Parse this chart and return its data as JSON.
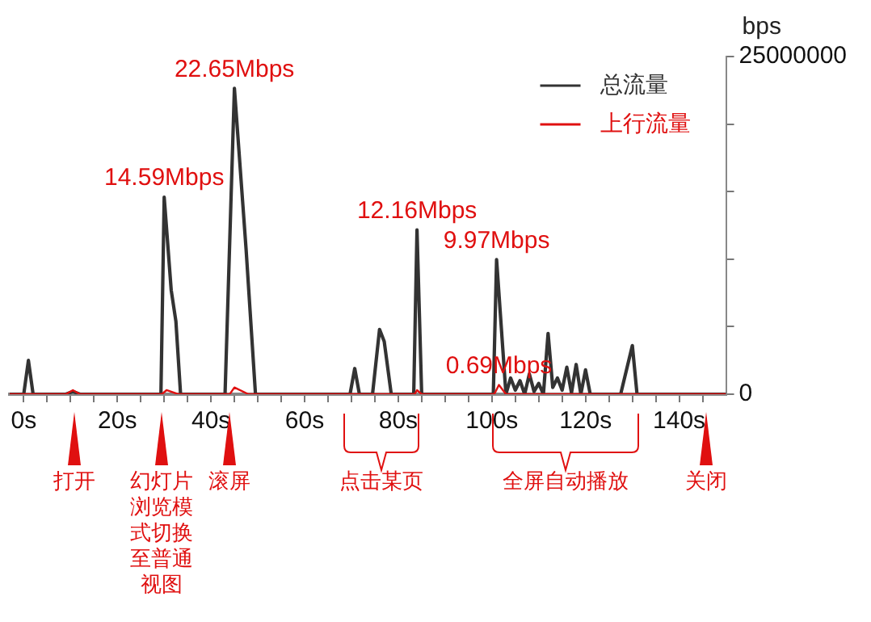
{
  "chart_data": {
    "type": "line",
    "ylabel": "bps",
    "xlim": [
      -3,
      150
    ],
    "xticks": [
      {
        "value": 0,
        "label": "0s"
      },
      {
        "value": 5,
        "label": null
      },
      {
        "value": 10,
        "label": null
      },
      {
        "value": 15,
        "label": null
      },
      {
        "value": 20,
        "label": "20s"
      },
      {
        "value": 25,
        "label": null
      },
      {
        "value": 30,
        "label": null
      },
      {
        "value": 35,
        "label": null
      },
      {
        "value": 40,
        "label": "40s"
      },
      {
        "value": 45,
        "label": null
      },
      {
        "value": 50,
        "label": null
      },
      {
        "value": 55,
        "label": null
      },
      {
        "value": 60,
        "label": "60s"
      },
      {
        "value": 65,
        "label": null
      },
      {
        "value": 70,
        "label": null
      },
      {
        "value": 75,
        "label": null
      },
      {
        "value": 80,
        "label": "80s"
      },
      {
        "value": 85,
        "label": null
      },
      {
        "value": 90,
        "label": null
      },
      {
        "value": 95,
        "label": null
      },
      {
        "value": 100,
        "label": "100s"
      },
      {
        "value": 105,
        "label": null
      },
      {
        "value": 110,
        "label": null
      },
      {
        "value": 115,
        "label": null
      },
      {
        "value": 120,
        "label": "120s"
      },
      {
        "value": 125,
        "label": null
      },
      {
        "value": 130,
        "label": null
      },
      {
        "value": 135,
        "label": null
      },
      {
        "value": 140,
        "label": "140s"
      },
      {
        "value": 145,
        "label": null
      }
    ],
    "ylim": [
      0,
      25000000
    ],
    "yticks": [
      0,
      {
        "value": 5000000,
        "label": null
      },
      {
        "value": 10000000,
        "label": null
      },
      {
        "value": 15000000,
        "label": null
      },
      {
        "value": 20000000,
        "label": null
      },
      25000000
    ],
    "grid": false,
    "legend": "top right",
    "marker": "none",
    "line_style": "solid",
    "series": [
      {
        "name": "总流量",
        "color": "#333333",
        "x": [
          -3,
          0,
          1,
          2,
          9,
          10.5,
          12,
          29.3,
          30,
          31.5,
          32.5,
          33.5,
          43,
          45,
          47.5,
          49.5,
          69.7,
          70.7,
          71.7,
          74.5,
          76,
          77,
          78.5,
          83.3,
          84,
          85,
          100.3,
          101,
          103,
          104,
          105,
          106,
          107,
          108,
          109,
          110,
          111,
          112,
          113,
          114,
          115,
          116,
          117,
          118,
          119,
          120,
          121,
          127.5,
          130,
          131,
          150
        ],
        "values": [
          0,
          0,
          2500000,
          0,
          0,
          200000,
          0,
          0,
          14590000,
          7700000,
          5400000,
          0,
          0,
          22650000,
          10700000,
          0,
          0,
          1900000,
          0,
          0,
          4800000,
          3900000,
          0,
          0,
          12160000,
          0,
          0,
          9970000,
          0,
          1200000,
          300000,
          1000000,
          0,
          1500000,
          200000,
          800000,
          0,
          4500000,
          500000,
          1200000,
          300000,
          2000000,
          100000,
          2200000,
          0,
          1800000,
          0,
          0,
          3600000,
          0,
          0
        ]
      },
      {
        "name": "上行流量",
        "color": "#e01010",
        "x": [
          -3,
          9,
          10.5,
          12,
          29.5,
          30.5,
          33,
          44,
          45,
          48,
          83.5,
          84,
          85,
          100.5,
          101.5,
          103,
          150
        ],
        "values": [
          0,
          0,
          300000,
          0,
          0,
          300000,
          0,
          0,
          500000,
          0,
          0,
          300000,
          0,
          0,
          690000,
          0,
          0
        ]
      }
    ],
    "annotations": [
      {
        "text": "14.59Mbps",
        "x": 30,
        "y": 14590000
      },
      {
        "text": "22.65Mbps",
        "x": 45,
        "y": 22650000
      },
      {
        "text": "12.16Mbps",
        "x": 84,
        "y": 12160000
      },
      {
        "text": "9.97Mbps",
        "x": 101,
        "y": 9970000
      },
      {
        "text": "0.69Mbps",
        "x": 101.5,
        "y": 690000
      },
      "打开",
      "幻灯片浏览模式切换至普通视图",
      "滚屏",
      "点击某页",
      "全屏自动播放",
      "关闭"
    ]
  }
}
